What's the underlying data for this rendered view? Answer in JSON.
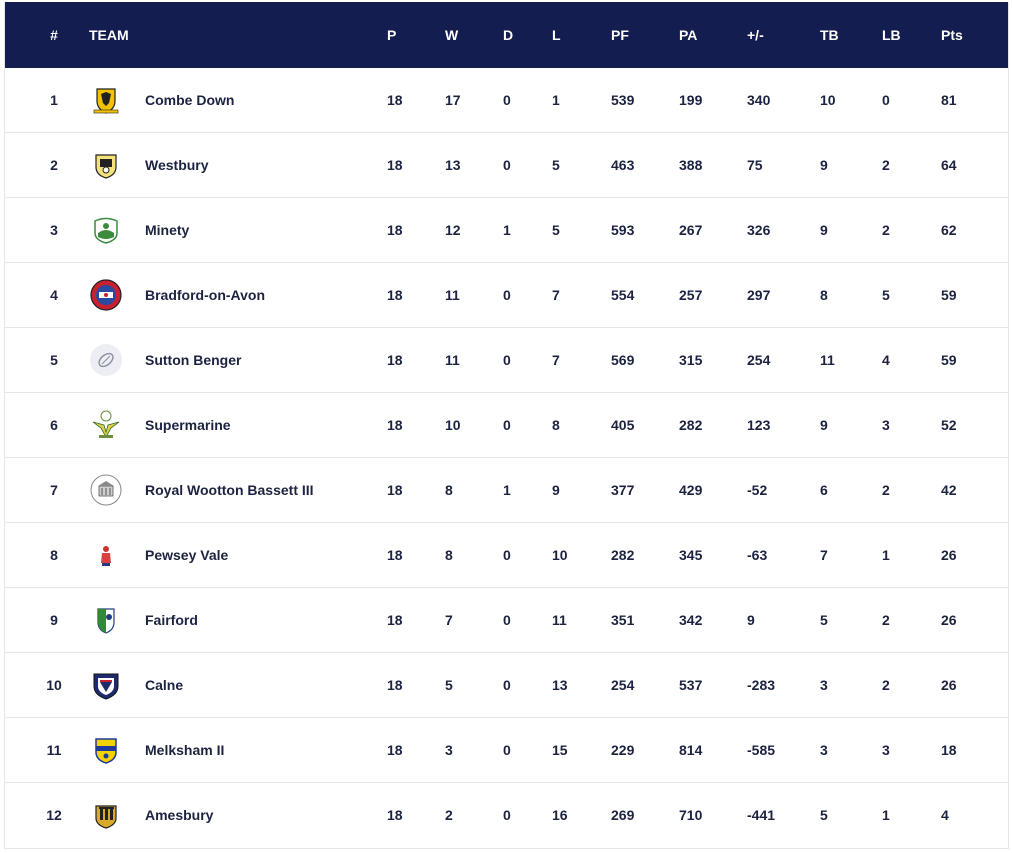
{
  "columns": {
    "pos": "#",
    "team": "TEAM",
    "p": "P",
    "w": "W",
    "d": "D",
    "l": "L",
    "pf": "PF",
    "pa": "PA",
    "diff": "+/-",
    "tb": "TB",
    "lb": "LB",
    "pts": "Pts"
  },
  "colors": {
    "header_bg": "#141d4f",
    "header_text": "#ffffff",
    "row_text": "#1c2340",
    "divider": "#e6e6ea"
  },
  "rows": [
    {
      "pos": "1",
      "team": "Combe Down",
      "p": "18",
      "w": "17",
      "d": "0",
      "l": "1",
      "pf": "539",
      "pa": "199",
      "diff": "340",
      "tb": "10",
      "lb": "0",
      "pts": "81",
      "logo": "crest-yellow-black-icon"
    },
    {
      "pos": "2",
      "team": "Westbury",
      "p": "18",
      "w": "13",
      "d": "0",
      "l": "5",
      "pf": "463",
      "pa": "388",
      "diff": "75",
      "tb": "9",
      "lb": "2",
      "pts": "64",
      "logo": "crest-yellow-black-shield-icon"
    },
    {
      "pos": "3",
      "team": "Minety",
      "p": "18",
      "w": "12",
      "d": "1",
      "l": "5",
      "pf": "593",
      "pa": "267",
      "diff": "326",
      "tb": "9",
      "lb": "2",
      "pts": "62",
      "logo": "crest-green-white-icon"
    },
    {
      "pos": "4",
      "team": "Bradford-on-Avon",
      "p": "18",
      "w": "11",
      "d": "0",
      "l": "7",
      "pf": "554",
      "pa": "257",
      "diff": "297",
      "tb": "8",
      "lb": "5",
      "pts": "59",
      "logo": "badge-red-blue-round-icon"
    },
    {
      "pos": "5",
      "team": "Sutton Benger",
      "p": "18",
      "w": "11",
      "d": "0",
      "l": "7",
      "pf": "569",
      "pa": "315",
      "diff": "254",
      "tb": "11",
      "lb": "4",
      "pts": "59",
      "logo": "rugby-ball-placeholder-icon"
    },
    {
      "pos": "6",
      "team": "Supermarine",
      "p": "18",
      "w": "10",
      "d": "0",
      "l": "8",
      "pf": "405",
      "pa": "282",
      "diff": "123",
      "tb": "9",
      "lb": "3",
      "pts": "52",
      "logo": "crest-green-yellow-wings-icon"
    },
    {
      "pos": "7",
      "team": "Royal Wootton Bassett III",
      "p": "18",
      "w": "8",
      "d": "1",
      "l": "9",
      "pf": "377",
      "pa": "429",
      "diff": "-52",
      "tb": "6",
      "lb": "2",
      "pts": "42",
      "logo": "crest-grey-building-icon"
    },
    {
      "pos": "8",
      "team": "Pewsey Vale",
      "p": "18",
      "w": "8",
      "d": "0",
      "l": "10",
      "pf": "282",
      "pa": "345",
      "diff": "-63",
      "tb": "7",
      "lb": "1",
      "pts": "26",
      "logo": "figure-red-small-icon"
    },
    {
      "pos": "9",
      "team": "Fairford",
      "p": "18",
      "w": "7",
      "d": "0",
      "l": "11",
      "pf": "351",
      "pa": "342",
      "diff": "9",
      "tb": "5",
      "lb": "2",
      "pts": "26",
      "logo": "shield-green-blue-icon"
    },
    {
      "pos": "10",
      "team": "Calne",
      "p": "18",
      "w": "5",
      "d": "0",
      "l": "13",
      "pf": "254",
      "pa": "537",
      "diff": "-283",
      "tb": "3",
      "lb": "2",
      "pts": "26",
      "logo": "shield-navy-red-icon"
    },
    {
      "pos": "11",
      "team": "Melksham II",
      "p": "18",
      "w": "3",
      "d": "0",
      "l": "15",
      "pf": "229",
      "pa": "814",
      "diff": "-585",
      "tb": "3",
      "lb": "3",
      "pts": "18",
      "logo": "shield-blue-yellow-icon"
    },
    {
      "pos": "12",
      "team": "Amesbury",
      "p": "18",
      "w": "2",
      "d": "0",
      "l": "16",
      "pf": "269",
      "pa": "710",
      "diff": "-441",
      "tb": "5",
      "lb": "1",
      "pts": "4",
      "logo": "crest-gold-black-building-icon"
    }
  ]
}
